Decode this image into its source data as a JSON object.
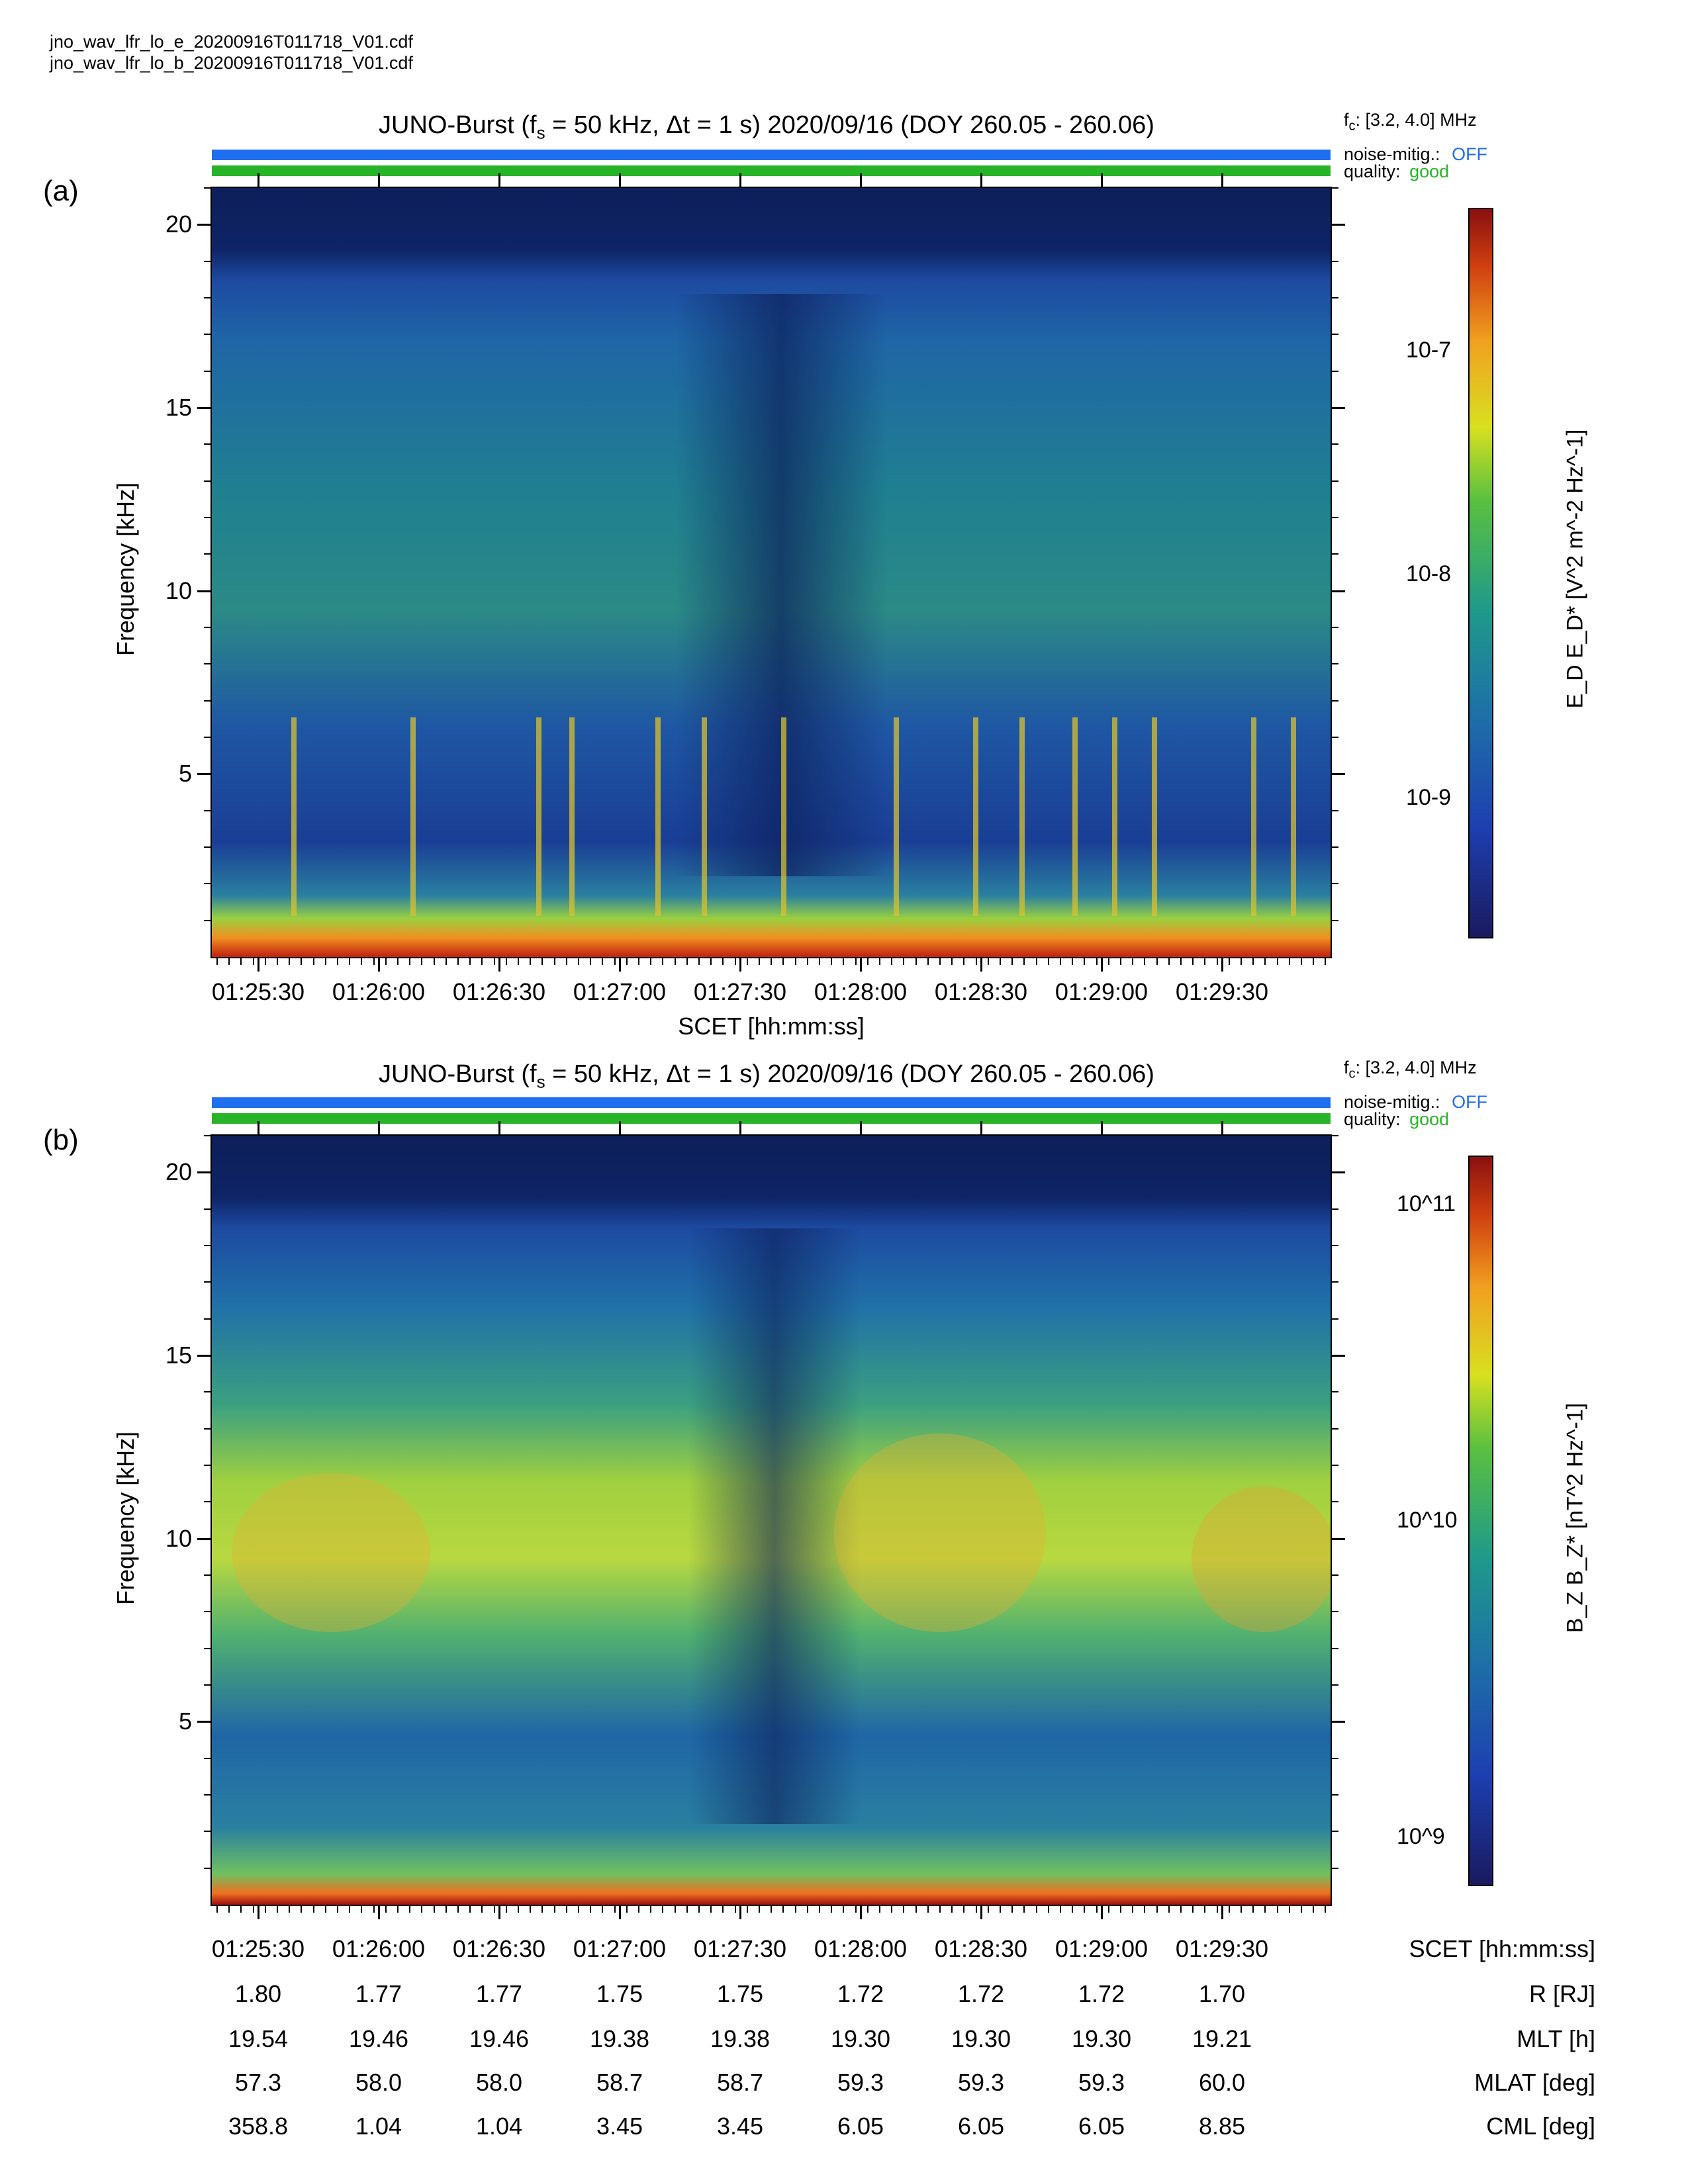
{
  "files": [
    "jno_wav_lfr_lo_e_20200916T011718_V01.cdf",
    "jno_wav_lfr_lo_b_20200916T011718_V01.cdf"
  ],
  "colors": {
    "mitig": "#1e6ef0",
    "quality": "#28b428",
    "bg": "#0d1f5a"
  },
  "panels": [
    {
      "label": "(a)",
      "title": "JUNO-Burst (f",
      "title_sub": "s",
      "title_rest": " = 50 kHz, Δt = 1 s)  2020/09/16 (DOY 260.05 - 260.06)",
      "fc": "f",
      "fc_sub": "c",
      "fc_rest": ": [3.2, 4.0] MHz",
      "noise_label": "noise-mitig.:",
      "noise_value": "OFF",
      "quality_label": "quality:",
      "quality_value": "good",
      "ylabel": "Frequency [kHz]",
      "xlabel": "SCET [hh:mm:ss]",
      "cbar_label": "E_D E_D* [V^2 m^-2 Hz^-1]",
      "cbar_ticks": [
        "10-7",
        "10-8",
        "10-9"
      ]
    },
    {
      "label": "(b)",
      "title": "JUNO-Burst (f",
      "title_sub": "s",
      "title_rest": " = 50 kHz, Δt = 1 s)  2020/09/16 (DOY 260.05 - 260.06)",
      "fc": "f",
      "fc_sub": "c",
      "fc_rest": ": [3.2, 4.0] MHz",
      "noise_label": "noise-mitig.:",
      "noise_value": "OFF",
      "quality_label": "quality:",
      "quality_value": "good",
      "ylabel": "Frequency [kHz]",
      "cbar_label": "B_Z B_Z* [nT^2 Hz^-1]",
      "cbar_ticks": [
        "10^11",
        "10^10",
        "10^9"
      ]
    }
  ],
  "chart_data": [
    {
      "type": "heatmap",
      "title": "JUNO-Burst (fs = 50 kHz, Δt = 1 s)  2020/09/16 (DOY 260.05 - 260.06)",
      "xlabel": "SCET [hh:mm:ss]",
      "ylabel": "Frequency [kHz]",
      "x_ticks": [
        "01:25:30",
        "01:26:00",
        "01:26:30",
        "01:27:00",
        "01:27:30",
        "01:28:00",
        "01:28:30",
        "01:29:00",
        "01:29:30"
      ],
      "y_ticks": [
        5,
        10,
        15,
        20
      ],
      "ylim": [
        0,
        21
      ],
      "colorbar": {
        "label": "EDED* [V2 m-2 Hz-1]",
        "scale": "log",
        "ticks": [
          "10-9",
          "10-8",
          "10-7"
        ]
      }
    },
    {
      "type": "heatmap",
      "title": "JUNO-Burst (fs = 50 kHz, Δt = 1 s)  2020/09/16 (DOY 260.05 - 260.06)",
      "ylabel": "Frequency [kHz]",
      "x_ticks": [
        "01:25:30",
        "01:26:00",
        "01:26:30",
        "01:27:00",
        "01:27:30",
        "01:28:00",
        "01:28:30",
        "01:29:00",
        "01:29:30"
      ],
      "y_ticks": [
        5,
        10,
        15,
        20
      ],
      "ylim": [
        0,
        21
      ],
      "colorbar": {
        "label": "BZBZ* [nT2 Hz-1]",
        "scale": "log",
        "ticks": [
          "10^9",
          "10^10",
          "10^11"
        ]
      }
    }
  ],
  "ephemeris": {
    "rows": [
      {
        "name": "SCET [hh:mm:ss]",
        "values": [
          "01:25:30",
          "01:26:00",
          "01:26:30",
          "01:27:00",
          "01:27:30",
          "01:28:00",
          "01:28:30",
          "01:29:00",
          "01:29:30"
        ]
      },
      {
        "name": "R [RJ]",
        "values": [
          "1.80",
          "1.77",
          "1.77",
          "1.75",
          "1.75",
          "1.72",
          "1.72",
          "1.72",
          "1.70"
        ]
      },
      {
        "name": "MLT [h]",
        "values": [
          "19.54",
          "19.46",
          "19.46",
          "19.38",
          "19.38",
          "19.30",
          "19.30",
          "19.30",
          "19.21"
        ]
      },
      {
        "name": "MLAT [deg]",
        "values": [
          "57.3",
          "58.0",
          "58.0",
          "58.7",
          "58.7",
          "59.3",
          "59.3",
          "59.3",
          "60.0"
        ]
      },
      {
        "name": "CML [deg]",
        "values": [
          "358.8",
          "1.04",
          "1.04",
          "3.45",
          "3.45",
          "6.05",
          "6.05",
          "6.05",
          "8.85"
        ]
      }
    ]
  }
}
